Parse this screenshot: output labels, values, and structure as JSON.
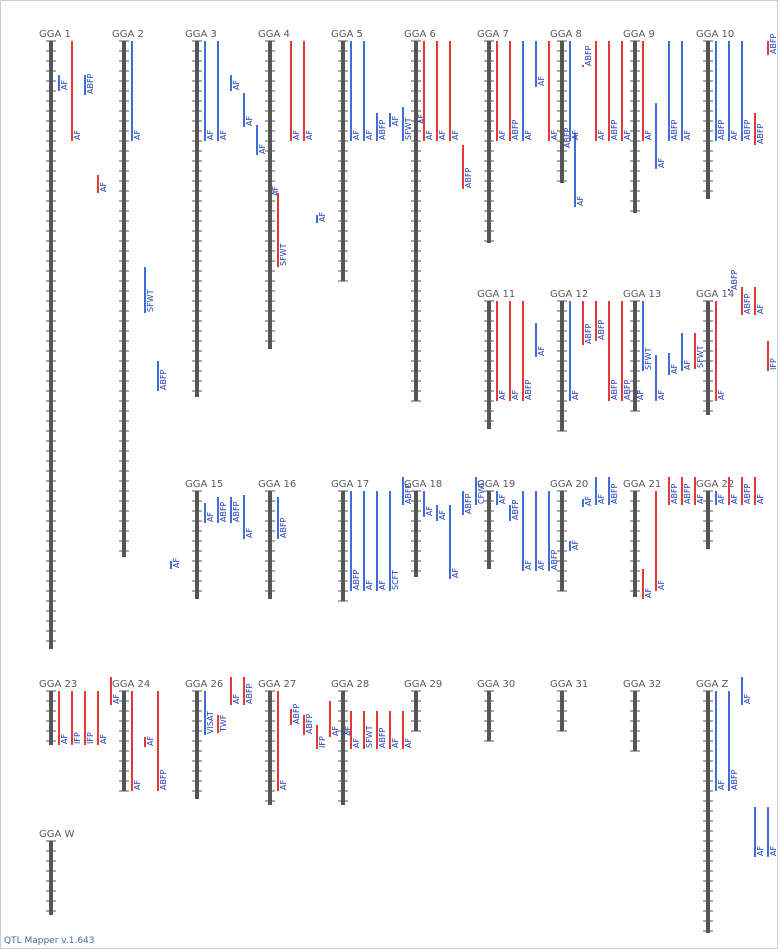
{
  "app": {
    "version_text": "QTL Mapper v.1.643"
  },
  "colors": {
    "chromosome": "#555555",
    "qtl_red": "#e53935",
    "qtl_blue": "#3f6fd6",
    "label": "#1f3fbf"
  },
  "chromosomes": [
    {
      "id": "GGA 1",
      "len": 608,
      "qtls": [
        {
          "trait": "AF",
          "c": "blue",
          "s": 34,
          "e": 50
        },
        {
          "trait": "AF",
          "c": "red",
          "s": 0,
          "e": 100
        },
        {
          "trait": "ABFP",
          "c": "blue",
          "s": 34,
          "e": 54
        },
        {
          "trait": "AF",
          "c": "red",
          "s": 134,
          "e": 152
        }
      ]
    },
    {
      "id": "GGA 2",
      "len": 516,
      "qtls": [
        {
          "trait": "AF",
          "c": "blue",
          "s": 0,
          "e": 100
        },
        {
          "trait": "SFWT",
          "c": "blue",
          "s": 226,
          "e": 272
        },
        {
          "trait": "ABFP",
          "c": "blue",
          "s": 320,
          "e": 350
        },
        {
          "trait": "AF",
          "c": "blue",
          "s": 520,
          "e": 528
        }
      ]
    },
    {
      "id": "GGA 3",
      "len": 356,
      "qtls": [
        {
          "trait": "AF",
          "c": "blue",
          "s": 0,
          "e": 100
        },
        {
          "trait": "AF",
          "c": "blue",
          "s": 0,
          "e": 100
        },
        {
          "trait": "AF",
          "c": "blue",
          "s": 34,
          "e": 50
        },
        {
          "trait": "AF",
          "c": "blue",
          "s": 52,
          "e": 86
        },
        {
          "trait": "AF",
          "c": "blue",
          "s": 84,
          "e": 114
        },
        {
          "trait": "AF",
          "c": "blue",
          "s": 84,
          "e": 156
        }
      ]
    },
    {
      "id": "GGA 4",
      "len": 308,
      "qtls": [
        {
          "trait": "SFWT",
          "c": "red",
          "s": 152,
          "e": 226
        },
        {
          "trait": "AF",
          "c": "red",
          "s": 0,
          "e": 100
        },
        {
          "trait": "AF",
          "c": "red",
          "s": 0,
          "e": 100
        },
        {
          "trait": "AF",
          "c": "blue",
          "s": 174,
          "e": 182
        }
      ]
    },
    {
      "id": "GGA 5",
      "len": 240,
      "qtls": [
        {
          "trait": "AF",
          "c": "blue",
          "s": 0,
          "e": 100
        },
        {
          "trait": "AF",
          "c": "blue",
          "s": 0,
          "e": 100
        },
        {
          "trait": "ABFP",
          "c": "blue",
          "s": 72,
          "e": 100
        },
        {
          "trait": "AF",
          "c": "blue",
          "s": 72,
          "e": 86
        },
        {
          "trait": "SFWT",
          "c": "blue",
          "s": 66,
          "e": 100
        },
        {
          "trait": "AF",
          "c": "red",
          "s": 66,
          "e": 84
        }
      ]
    },
    {
      "id": "GGA 6",
      "len": 360,
      "qtls": [
        {
          "trait": "AF",
          "c": "red",
          "s": 0,
          "e": 100
        },
        {
          "trait": "AF",
          "c": "red",
          "s": 0,
          "e": 100
        },
        {
          "trait": "AF",
          "c": "red",
          "s": 0,
          "e": 100
        },
        {
          "trait": "ABFP",
          "c": "red",
          "s": 104,
          "e": 148
        }
      ]
    },
    {
      "id": "GGA 7",
      "len": 202,
      "qtls": [
        {
          "trait": "AF",
          "c": "red",
          "s": 0,
          "e": 100
        },
        {
          "trait": "ABFP",
          "c": "red",
          "s": 0,
          "e": 100
        },
        {
          "trait": "AF",
          "c": "blue",
          "s": 0,
          "e": 100
        },
        {
          "trait": "AF",
          "c": "blue",
          "s": 0,
          "e": 46
        },
        {
          "trait": "AF",
          "c": "red",
          "s": 0,
          "e": 100
        },
        {
          "trait": "ABFP",
          "c": "red",
          "s": 80,
          "e": 108
        },
        {
          "trait": "AF",
          "c": "blue",
          "s": 92,
          "e": 166
        }
      ]
    },
    {
      "id": "GGA 8",
      "len": 142,
      "qtls": [
        {
          "trait": "AF",
          "c": "blue",
          "s": 0,
          "e": 100
        },
        {
          "trait": "ABFP",
          "c": "red",
          "s": 24,
          "e": 26
        },
        {
          "trait": "AF",
          "c": "red",
          "s": 0,
          "e": 100
        },
        {
          "trait": "ABFP",
          "c": "red",
          "s": 0,
          "e": 100
        },
        {
          "trait": "AF",
          "c": "red",
          "s": 0,
          "e": 100
        }
      ]
    },
    {
      "id": "GGA 9",
      "len": 172,
      "qtls": [
        {
          "trait": "AF",
          "c": "red",
          "s": 0,
          "e": 100
        },
        {
          "trait": "AF",
          "c": "blue",
          "s": 62,
          "e": 128
        },
        {
          "trait": "ABFP",
          "c": "blue",
          "s": 0,
          "e": 100
        },
        {
          "trait": "AF",
          "c": "blue",
          "s": 0,
          "e": 100
        }
      ]
    },
    {
      "id": "GGA 10",
      "len": 158,
      "qtls": [
        {
          "trait": "ABFP",
          "c": "blue",
          "s": 0,
          "e": 100
        },
        {
          "trait": "AF",
          "c": "blue",
          "s": 0,
          "e": 100
        },
        {
          "trait": "ABFP",
          "c": "blue",
          "s": 0,
          "e": 100
        },
        {
          "trait": "ABFP",
          "c": "red",
          "s": 72,
          "e": 104
        },
        {
          "trait": "ABFP",
          "c": "red",
          "s": 0,
          "e": 14
        },
        {
          "trait": "ABFP",
          "c": "red",
          "s": 0,
          "e": 14
        },
        {
          "trait": "ABFP",
          "c": "red",
          "s": 0,
          "e": 100
        }
      ]
    },
    {
      "id": "GGA 11",
      "len": 128,
      "qtls": [
        {
          "trait": "AF",
          "c": "red",
          "s": 0,
          "e": 100
        },
        {
          "trait": "AF",
          "c": "red",
          "s": 0,
          "e": 100
        },
        {
          "trait": "ABFP",
          "c": "red",
          "s": 0,
          "e": 100
        },
        {
          "trait": "AF",
          "c": "blue",
          "s": 22,
          "e": 56
        }
      ]
    },
    {
      "id": "GGA 12",
      "len": 130,
      "qtls": [
        {
          "trait": "AF",
          "c": "blue",
          "s": 0,
          "e": 100
        },
        {
          "trait": "ABFP",
          "c": "red",
          "s": 0,
          "e": 44
        },
        {
          "trait": "ABFP",
          "c": "red",
          "s": 0,
          "e": 40
        },
        {
          "trait": "ABFP",
          "c": "red",
          "s": 0,
          "e": 100
        },
        {
          "trait": "ABFP",
          "c": "red",
          "s": 0,
          "e": 100
        },
        {
          "trait": "AF",
          "c": "red",
          "s": 0,
          "e": 100
        }
      ]
    },
    {
      "id": "GGA 13",
      "len": 110,
      "qtls": [
        {
          "trait": "SFWT",
          "c": "blue",
          "s": 0,
          "e": 70
        },
        {
          "trait": "AF",
          "c": "blue",
          "s": 54,
          "e": 100
        },
        {
          "trait": "AF",
          "c": "blue",
          "s": 52,
          "e": 74
        },
        {
          "trait": "AF",
          "c": "blue",
          "s": 32,
          "e": 70
        },
        {
          "trait": "SFWT",
          "c": "red",
          "s": 32,
          "e": 68
        }
      ]
    },
    {
      "id": "GGA 14",
      "len": 114,
      "qtls": [
        {
          "trait": "AF",
          "c": "red",
          "s": 0,
          "e": 100
        },
        {
          "trait": "ABFP",
          "c": "blue",
          "s": -12,
          "e": -10
        },
        {
          "trait": "ABFP",
          "c": "red",
          "s": -14,
          "e": 14
        },
        {
          "trait": "AF",
          "c": "red",
          "s": -14,
          "e": 14
        },
        {
          "trait": "IFP",
          "c": "red",
          "s": 40,
          "e": 70
        }
      ]
    },
    {
      "id": "GGA 15",
      "len": 108,
      "qtls": [
        {
          "trait": "AF",
          "c": "blue",
          "s": 12,
          "e": 32
        },
        {
          "trait": "ABFP",
          "c": "blue",
          "s": 6,
          "e": 32
        },
        {
          "trait": "ABFP",
          "c": "blue",
          "s": 6,
          "e": 32
        },
        {
          "trait": "AF",
          "c": "blue",
          "s": 4,
          "e": 48
        }
      ]
    },
    {
      "id": "GGA 16",
      "len": 108,
      "qtls": [
        {
          "trait": "ABFP",
          "c": "blue",
          "s": 6,
          "e": 48
        }
      ]
    },
    {
      "id": "GGA 17",
      "len": 110,
      "qtls": [
        {
          "trait": "ABFP",
          "c": "blue",
          "s": 0,
          "e": 100
        },
        {
          "trait": "AF",
          "c": "blue",
          "s": 0,
          "e": 100
        },
        {
          "trait": "AF",
          "c": "blue",
          "s": 0,
          "e": 100
        },
        {
          "trait": "SCFT",
          "c": "blue",
          "s": 0,
          "e": 100
        },
        {
          "trait": "ABFP",
          "c": "blue",
          "s": -14,
          "e": 14
        }
      ]
    },
    {
      "id": "GGA 18",
      "len": 86,
      "qtls": [
        {
          "trait": "AF",
          "c": "blue",
          "s": 0,
          "e": 26
        },
        {
          "trait": "AF",
          "c": "blue",
          "s": 14,
          "e": 30
        },
        {
          "trait": "AF",
          "c": "blue",
          "s": 14,
          "e": 88
        },
        {
          "trait": "ABFP",
          "c": "blue",
          "s": 0,
          "e": 24
        },
        {
          "trait": "CFWD",
          "c": "blue",
          "s": -14,
          "e": 14
        }
      ]
    },
    {
      "id": "GGA 19",
      "len": 78,
      "qtls": [
        {
          "trait": "AF",
          "c": "blue",
          "s": 0,
          "e": 14
        },
        {
          "trait": "ABFP",
          "c": "blue",
          "s": 14,
          "e": 30
        },
        {
          "trait": "AF",
          "c": "blue",
          "s": 0,
          "e": 80
        },
        {
          "trait": "AF",
          "c": "blue",
          "s": 0,
          "e": 80
        },
        {
          "trait": "ABFP",
          "c": "blue",
          "s": 0,
          "e": 80
        }
      ]
    },
    {
      "id": "GGA 20",
      "len": 100,
      "qtls": [
        {
          "trait": "AF",
          "c": "blue",
          "s": 50,
          "e": 60
        },
        {
          "trait": "AF",
          "c": "blue",
          "s": 8,
          "e": 16
        },
        {
          "trait": "AF",
          "c": "blue",
          "s": -14,
          "e": 14
        },
        {
          "trait": "ABFP",
          "c": "blue",
          "s": -14,
          "e": 14
        }
      ]
    },
    {
      "id": "GGA 21",
      "len": 106,
      "qtls": [
        {
          "trait": "AF",
          "c": "red",
          "s": 78,
          "e": 108
        },
        {
          "trait": "AF",
          "c": "red",
          "s": 0,
          "e": 100
        },
        {
          "trait": "ABFP",
          "c": "red",
          "s": -14,
          "e": 14
        },
        {
          "trait": "ABFP",
          "c": "red",
          "s": -14,
          "e": 14
        },
        {
          "trait": "AF",
          "c": "red",
          "s": -14,
          "e": 14
        }
      ]
    },
    {
      "id": "GGA 22",
      "len": 58,
      "qtls": [
        {
          "trait": "AF",
          "c": "blue",
          "s": 0,
          "e": 14
        },
        {
          "trait": "AF",
          "c": "red",
          "s": -14,
          "e": 14
        },
        {
          "trait": "ABFP",
          "c": "red",
          "s": -14,
          "e": 14
        },
        {
          "trait": "AF",
          "c": "red",
          "s": -14,
          "e": 14
        }
      ]
    },
    {
      "id": "GGA 23",
      "len": 54,
      "qtls": [
        {
          "trait": "AF",
          "c": "red",
          "s": 0,
          "e": 54
        },
        {
          "trait": "IFP",
          "c": "red",
          "s": 0,
          "e": 54
        },
        {
          "trait": "IFP",
          "c": "red",
          "s": 0,
          "e": 54
        },
        {
          "trait": "AF",
          "c": "red",
          "s": 0,
          "e": 54
        },
        {
          "trait": "AF",
          "c": "red",
          "s": -14,
          "e": 14
        }
      ]
    },
    {
      "id": "GGA 24",
      "len": 100,
      "qtls": [
        {
          "trait": "AF",
          "c": "red",
          "s": 0,
          "e": 100
        },
        {
          "trait": "AF",
          "c": "red",
          "s": 46,
          "e": 56
        },
        {
          "trait": "ABFP",
          "c": "red",
          "s": 0,
          "e": 100
        }
      ]
    },
    {
      "id": "GGA 26",
      "len": 108,
      "qtls": [
        {
          "trait": "VISAT",
          "c": "blue",
          "s": 0,
          "e": 44
        },
        {
          "trait": "TWF",
          "c": "red",
          "s": 24,
          "e": 42
        },
        {
          "trait": "AF",
          "c": "red",
          "s": -14,
          "e": 14
        },
        {
          "trait": "ABFP",
          "c": "red",
          "s": -14,
          "e": 14
        }
      ]
    },
    {
      "id": "GGA 27",
      "len": 114,
      "qtls": [
        {
          "trait": "AF",
          "c": "red",
          "s": 0,
          "e": 100
        },
        {
          "trait": "ABFP",
          "c": "red",
          "s": 18,
          "e": 34
        },
        {
          "trait": "ABFP",
          "c": "red",
          "s": 24,
          "e": 44
        },
        {
          "trait": "IFP",
          "c": "red",
          "s": 34,
          "e": 58
        },
        {
          "trait": "AF",
          "c": "red",
          "s": 10,
          "e": 46
        },
        {
          "trait": "AF",
          "c": "red",
          "s": 10,
          "e": 46
        }
      ]
    },
    {
      "id": "GGA 28",
      "len": 114,
      "qtls": [
        {
          "trait": "AF",
          "c": "red",
          "s": 20,
          "e": 58
        },
        {
          "trait": "SFWT",
          "c": "red",
          "s": 20,
          "e": 58
        },
        {
          "trait": "ABFP",
          "c": "red",
          "s": 20,
          "e": 58
        },
        {
          "trait": "AF",
          "c": "red",
          "s": 20,
          "e": 58
        },
        {
          "trait": "AF",
          "c": "red",
          "s": 20,
          "e": 58
        }
      ]
    },
    {
      "id": "GGA 29",
      "len": 40,
      "qtls": []
    },
    {
      "id": "GGA 30",
      "len": 50,
      "qtls": []
    },
    {
      "id": "GGA 31",
      "len": 40,
      "qtls": []
    },
    {
      "id": "GGA 32",
      "len": 60,
      "qtls": []
    },
    {
      "id": "GGA Z",
      "len": 242,
      "qtls": [
        {
          "trait": "AF",
          "c": "blue",
          "s": 0,
          "e": 100
        },
        {
          "trait": "ABFP",
          "c": "blue",
          "s": 0,
          "e": 100
        },
        {
          "trait": "AF",
          "c": "blue",
          "s": -14,
          "e": 14
        },
        {
          "trait": "AF",
          "c": "blue",
          "s": 116,
          "e": 166
        },
        {
          "trait": "AF",
          "c": "blue",
          "s": 116,
          "e": 166
        }
      ]
    },
    {
      "id": "GGA W",
      "len": 74,
      "qtls": []
    }
  ]
}
